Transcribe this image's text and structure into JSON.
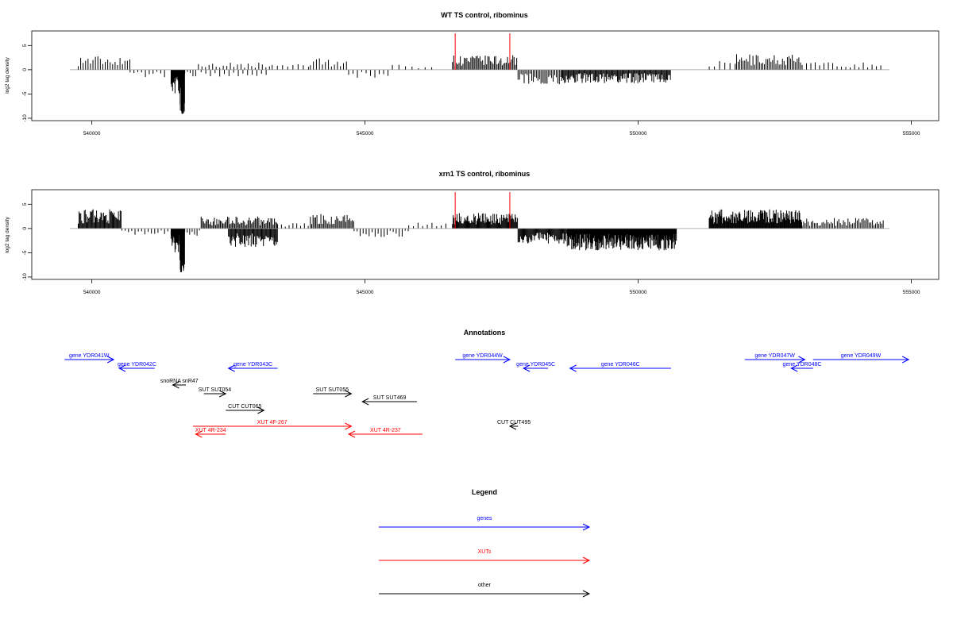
{
  "chart_data": [
    {
      "type": "bar",
      "title": "WT TS control, ribominus",
      "ylabel": "log2 tag density",
      "xlim": [
        538900,
        555500
      ],
      "ylim": [
        -10.5,
        8
      ],
      "x_ticks": [
        540000,
        545000,
        550000,
        555000
      ],
      "y_ticks": [
        -10,
        -5,
        0,
        5
      ],
      "baseline": [
        539600,
        554600
      ],
      "markers": [
        {
          "x": 546650,
          "color": "#ff0000"
        },
        {
          "x": 547650,
          "color": "#ff0000"
        }
      ],
      "segments": [
        {
          "x0": 539750,
          "x1": 540700,
          "amp": 3.0,
          "step": 45
        },
        {
          "x0": 540700,
          "x1": 541400,
          "amp": -1.6,
          "step": 70
        },
        {
          "x0": 541450,
          "x1": 541600,
          "amp": -5.0,
          "step": 9
        },
        {
          "x0": 541600,
          "x1": 541700,
          "amp": -9.5,
          "step": 4
        },
        {
          "x0": 541700,
          "x1": 541950,
          "amp": -1.5,
          "step": 50
        },
        {
          "x0": 541950,
          "x1": 543300,
          "amp": 1.5,
          "step": 65
        },
        {
          "x0": 542000,
          "x1": 543200,
          "amp": -1.5,
          "step": 85
        },
        {
          "x0": 543300,
          "x1": 544000,
          "amp": 1.3,
          "step": 95
        },
        {
          "x0": 544000,
          "x1": 544700,
          "amp": 2.4,
          "step": 55
        },
        {
          "x0": 544700,
          "x1": 545500,
          "amp": -1.7,
          "step": 80
        },
        {
          "x0": 545500,
          "x1": 546300,
          "amp": 1.2,
          "step": 120
        },
        {
          "x0": 546600,
          "x1": 547800,
          "amp": 3.0,
          "step": 24
        },
        {
          "x0": 547800,
          "x1": 548600,
          "amp": -3.0,
          "step": 28
        },
        {
          "x0": 548600,
          "x1": 550600,
          "amp": -2.8,
          "step": 17
        },
        {
          "x0": 551300,
          "x1": 551800,
          "amp": 1.8,
          "step": 95
        },
        {
          "x0": 551800,
          "x1": 553000,
          "amp": 3.2,
          "step": 30
        },
        {
          "x0": 553000,
          "x1": 554500,
          "amp": 1.6,
          "step": 80
        }
      ]
    },
    {
      "type": "bar",
      "title": "xrn1 TS control, ribominus",
      "ylabel": "log2 tag density",
      "xlim": [
        538900,
        555500
      ],
      "ylim": [
        -10.5,
        8
      ],
      "x_ticks": [
        540000,
        545000,
        550000,
        555000
      ],
      "y_ticks": [
        -10,
        -5,
        0,
        5
      ],
      "baseline": [
        539600,
        554600
      ],
      "markers": [
        {
          "x": 546650,
          "color": "#ff0000"
        },
        {
          "x": 547650,
          "color": "#ff0000"
        }
      ],
      "segments": [
        {
          "x0": 539750,
          "x1": 540550,
          "amp": 4.0,
          "step": 16
        },
        {
          "x0": 540550,
          "x1": 541400,
          "amp": -1.3,
          "step": 60
        },
        {
          "x0": 541450,
          "x1": 541600,
          "amp": -5.0,
          "step": 9
        },
        {
          "x0": 541600,
          "x1": 541700,
          "amp": -9.5,
          "step": 4
        },
        {
          "x0": 541700,
          "x1": 542000,
          "amp": -1.5,
          "step": 45
        },
        {
          "x0": 542000,
          "x1": 543400,
          "amp": 2.5,
          "step": 22
        },
        {
          "x0": 542500,
          "x1": 543400,
          "amp": -3.8,
          "step": 16
        },
        {
          "x0": 543400,
          "x1": 544000,
          "amp": 1.2,
          "step": 70
        },
        {
          "x0": 544000,
          "x1": 544800,
          "amp": 3.0,
          "step": 24
        },
        {
          "x0": 544800,
          "x1": 545800,
          "amp": -1.8,
          "step": 55
        },
        {
          "x0": 545800,
          "x1": 546500,
          "amp": 1.5,
          "step": 85
        },
        {
          "x0": 546600,
          "x1": 547800,
          "amp": 3.2,
          "step": 14
        },
        {
          "x0": 547800,
          "x1": 548700,
          "amp": -3.2,
          "step": 15
        },
        {
          "x0": 548700,
          "x1": 550700,
          "amp": -4.5,
          "step": 9
        },
        {
          "x0": 551300,
          "x1": 553000,
          "amp": 4.0,
          "step": 12
        },
        {
          "x0": 553000,
          "x1": 554500,
          "amp": 2.2,
          "step": 28
        }
      ]
    }
  ],
  "annotations": {
    "title": "Annotations",
    "features": [
      {
        "label": "gene YDR041W",
        "kind": "gene",
        "x0": 539500,
        "x1": 540400,
        "dir": "right",
        "row": 0
      },
      {
        "label": "gene YDR042C",
        "kind": "gene",
        "x0": 540500,
        "x1": 541150,
        "dir": "left",
        "row": 1
      },
      {
        "label": "gene YDR043C",
        "kind": "gene",
        "x0": 542500,
        "x1": 543400,
        "dir": "left",
        "row": 1
      },
      {
        "label": "snoRNA snR47",
        "kind": "other",
        "x0": 541480,
        "x1": 541720,
        "dir": "left",
        "row": 2
      },
      {
        "label": "SUT SUT054",
        "kind": "other",
        "x0": 542050,
        "x1": 542450,
        "dir": "right",
        "row": 3
      },
      {
        "label": "SUT SUT055",
        "kind": "other",
        "x0": 544050,
        "x1": 544750,
        "dir": "right",
        "row": 3
      },
      {
        "label": "SUT SUT469",
        "kind": "other",
        "x0": 544950,
        "x1": 545950,
        "dir": "left",
        "row": 4
      },
      {
        "label": "CUT CUT065",
        "kind": "other",
        "x0": 542450,
        "x1": 543150,
        "dir": "right",
        "row": 5
      },
      {
        "label": "XUT 4F-267",
        "kind": "xut",
        "x0": 541850,
        "x1": 544750,
        "dir": "right",
        "row": 6
      },
      {
        "label": "XUT 4R-234",
        "kind": "xut",
        "x0": 541900,
        "x1": 542450,
        "dir": "left",
        "row": 7
      },
      {
        "label": "XUT 4R-237",
        "kind": "xut",
        "x0": 544700,
        "x1": 546050,
        "dir": "left",
        "row": 7
      },
      {
        "label": "gene YDR044W",
        "kind": "gene",
        "x0": 546650,
        "x1": 547650,
        "dir": "right",
        "row": 0
      },
      {
        "label": "gene YDR045C",
        "kind": "gene",
        "x0": 547900,
        "x1": 548350,
        "dir": "left",
        "row": 1
      },
      {
        "label": "gene YDR046C",
        "kind": "gene",
        "x0": 548750,
        "x1": 550600,
        "dir": "left",
        "row": 1
      },
      {
        "label": "CUT CUT495",
        "kind": "other",
        "x0": 547650,
        "x1": 547800,
        "dir": "left",
        "row": 6
      },
      {
        "label": "gene YDR047W",
        "kind": "gene",
        "x0": 551950,
        "x1": 553050,
        "dir": "right",
        "row": 0
      },
      {
        "label": "gene YDR048C",
        "kind": "gene",
        "x0": 552800,
        "x1": 553200,
        "dir": "left",
        "row": 1
      },
      {
        "label": "gene YDR049W",
        "kind": "gene",
        "x0": 553200,
        "x1": 554950,
        "dir": "right",
        "row": 0
      }
    ]
  },
  "legend": {
    "title": "Legend",
    "items": [
      {
        "label": "genes",
        "color": "#0000ff"
      },
      {
        "label": "XUTs",
        "color": "#ff0000"
      },
      {
        "label": "other",
        "color": "#000000"
      }
    ]
  },
  "colors": {
    "gene": "#0000ff",
    "xut": "#ff0000",
    "other": "#000000",
    "baseline": "#999999"
  }
}
